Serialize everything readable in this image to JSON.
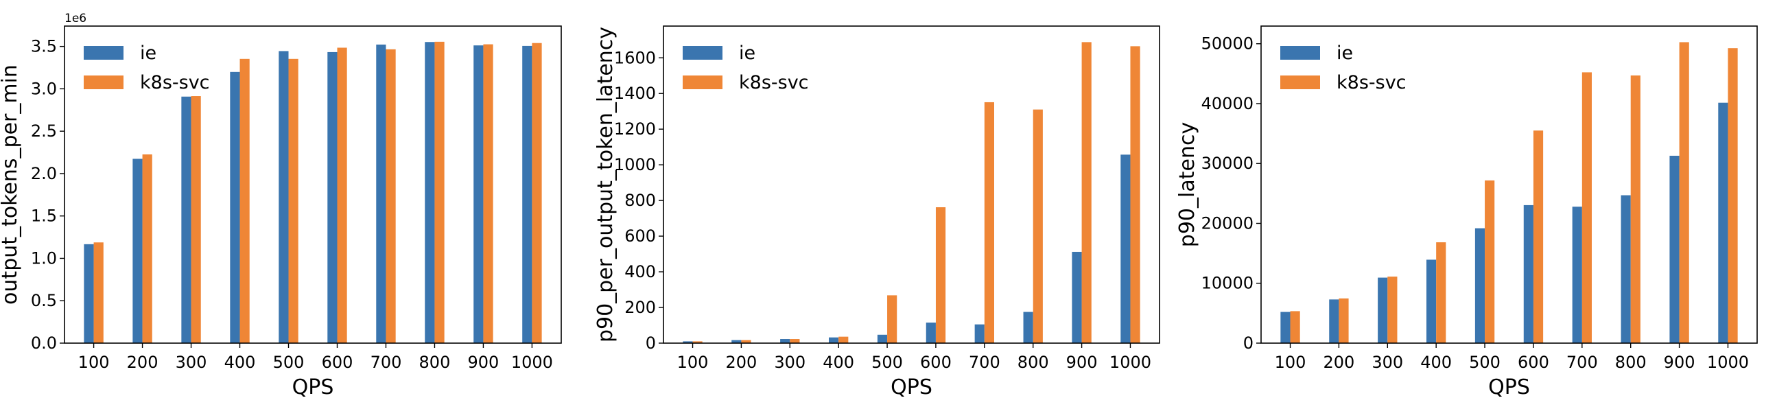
{
  "colors": {
    "ie": "#3a75af",
    "k8s-svc": "#ef8636"
  },
  "chart_data": [
    {
      "type": "bar",
      "xlabel": "QPS",
      "ylabel": "output_tokens_per_min",
      "offset_text": "1e6",
      "categories": [
        "100",
        "200",
        "300",
        "400",
        "500",
        "600",
        "700",
        "800",
        "900",
        "1000"
      ],
      "ylim": [
        0,
        3.74
      ],
      "yticks": [
        0.0,
        0.5,
        1.0,
        1.5,
        2.0,
        2.5,
        3.0,
        3.5
      ],
      "ytick_labels": [
        "0.0",
        "0.5",
        "1.0",
        "1.5",
        "2.0",
        "2.5",
        "3.0",
        "3.5"
      ],
      "legend": "top-left",
      "grid": false,
      "series": [
        {
          "name": "ie",
          "values": [
            1.167,
            2.174,
            2.908,
            3.199,
            3.445,
            3.433,
            3.522,
            3.552,
            3.512,
            3.506
          ]
        },
        {
          "name": "k8s-svc",
          "values": [
            1.188,
            2.226,
            2.914,
            3.353,
            3.353,
            3.485,
            3.466,
            3.555,
            3.525,
            3.54
          ]
        }
      ]
    },
    {
      "type": "bar",
      "xlabel": "QPS",
      "ylabel": "p90_per_output_token_latency",
      "categories": [
        "100",
        "200",
        "300",
        "400",
        "500",
        "600",
        "700",
        "800",
        "900",
        "1000"
      ],
      "ylim": [
        0,
        1778
      ],
      "yticks": [
        0,
        200,
        400,
        600,
        800,
        1000,
        1200,
        1400,
        1600
      ],
      "ytick_labels": [
        "0",
        "200",
        "400",
        "600",
        "800",
        "1000",
        "1200",
        "1400",
        "1600"
      ],
      "legend": "top-left",
      "grid": false,
      "series": [
        {
          "name": "ie",
          "values": [
            10,
            17,
            23,
            32,
            47,
            115,
            105,
            175,
            512,
            1057
          ]
        },
        {
          "name": "k8s-svc",
          "values": [
            10,
            17,
            23,
            36,
            268,
            762,
            1351,
            1310,
            1688,
            1665
          ]
        }
      ]
    },
    {
      "type": "bar",
      "xlabel": "QPS",
      "ylabel": "p90_latency",
      "categories": [
        "100",
        "200",
        "300",
        "400",
        "500",
        "600",
        "700",
        "800",
        "900",
        "1000"
      ],
      "ylim": [
        0,
        52950
      ],
      "yticks": [
        0,
        10000,
        20000,
        30000,
        40000,
        50000
      ],
      "ytick_labels": [
        "0",
        "10000",
        "20000",
        "30000",
        "40000",
        "50000"
      ],
      "legend": "top-left",
      "grid": false,
      "series": [
        {
          "name": "ie",
          "values": [
            5208,
            7292,
            10938,
            13932,
            19184,
            23047,
            22786,
            24696,
            31293,
            40148
          ]
        },
        {
          "name": "k8s-svc",
          "values": [
            5339,
            7465,
            11111,
            16840,
            27170,
            35503,
            45226,
            44705,
            50260,
            49262
          ]
        }
      ]
    }
  ]
}
